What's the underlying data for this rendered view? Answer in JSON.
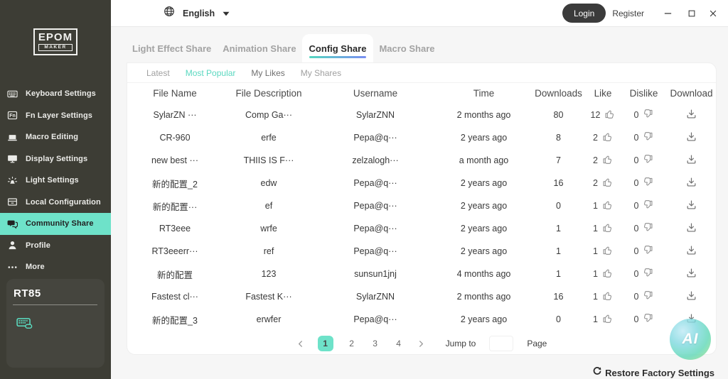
{
  "topbar": {
    "language": "English",
    "language_icon": "globe-icon",
    "login": "Login",
    "register": "Register",
    "window_icons": [
      "minimize-icon",
      "maximize-icon",
      "close-icon"
    ]
  },
  "sidebar": {
    "logo_line1": "EPOM",
    "logo_line2": "MAKER",
    "items": [
      {
        "label": "Keyboard Settings",
        "icon": "keyboard-icon",
        "active": false
      },
      {
        "label": "Fn Layer Settings",
        "icon": "fn-key-icon",
        "active": false
      },
      {
        "label": "Macro Editing",
        "icon": "macro-icon",
        "active": false
      },
      {
        "label": "Display Settings",
        "icon": "display-icon",
        "active": false
      },
      {
        "label": "Light Settings",
        "icon": "light-icon",
        "active": false
      },
      {
        "label": "Local Configuration",
        "icon": "local-config-icon",
        "active": false
      },
      {
        "label": "Community Share",
        "icon": "community-share-icon",
        "active": true
      },
      {
        "label": "Profile",
        "icon": "profile-icon",
        "active": false
      },
      {
        "label": "More",
        "icon": "more-dots-icon",
        "active": false
      }
    ],
    "device": {
      "name": "RT85",
      "icon": "keyboard-device-icon"
    }
  },
  "tabs": [
    {
      "label": "Light Effect Share",
      "active": false
    },
    {
      "label": "Animation Share",
      "active": false
    },
    {
      "label": "Config Share",
      "active": true
    },
    {
      "label": "Macro Share",
      "active": false
    }
  ],
  "subtabs": [
    {
      "label": "Latest",
      "tone": "light"
    },
    {
      "label": "Most Popular",
      "tone": "active"
    },
    {
      "label": "My Likes",
      "tone": "dark"
    },
    {
      "label": "My Shares",
      "tone": "light"
    }
  ],
  "table": {
    "headers": [
      "File Name",
      "File Description",
      "Username",
      "Time",
      "Downloads",
      "Like",
      "Dislike",
      "Download"
    ],
    "like_icon": "thumb-up-icon",
    "dislike_icon": "thumb-down-icon",
    "download_icon": "download-icon",
    "rows": [
      {
        "name": "SylarZN ···",
        "desc": "Comp Ga···",
        "user": "SylarZNN",
        "time": "2 months ago",
        "downloads": "80",
        "likes": "12",
        "dislikes": "0"
      },
      {
        "name": "CR-960",
        "desc": "erfe",
        "user": "Pepa@q···",
        "time": "2 years ago",
        "downloads": "8",
        "likes": "2",
        "dislikes": "0"
      },
      {
        "name": "new best ···",
        "desc": "THIIS IS F···",
        "user": "zelzalogh···",
        "time": "a month ago",
        "downloads": "7",
        "likes": "2",
        "dislikes": "0"
      },
      {
        "name": "新的配置_2",
        "desc": "edw",
        "user": "Pepa@q···",
        "time": "2 years ago",
        "downloads": "16",
        "likes": "2",
        "dislikes": "0"
      },
      {
        "name": "新的配置···",
        "desc": "ef",
        "user": "Pepa@q···",
        "time": "2 years ago",
        "downloads": "0",
        "likes": "1",
        "dislikes": "0"
      },
      {
        "name": "RT3eee",
        "desc": "wrfe",
        "user": "Pepa@q···",
        "time": "2 years ago",
        "downloads": "1",
        "likes": "1",
        "dislikes": "0"
      },
      {
        "name": "RT3eeerr···",
        "desc": "ref",
        "user": "Pepa@q···",
        "time": "2 years ago",
        "downloads": "1",
        "likes": "1",
        "dislikes": "0"
      },
      {
        "name": "新的配置",
        "desc": "123",
        "user": "sunsun1jnj",
        "time": "4 months ago",
        "downloads": "1",
        "likes": "1",
        "dislikes": "0"
      },
      {
        "name": "Fastest cl···",
        "desc": "Fastest K···",
        "user": "SylarZNN",
        "time": "2 months ago",
        "downloads": "16",
        "likes": "1",
        "dislikes": "0"
      },
      {
        "name": "新的配置_3",
        "desc": "erwfer",
        "user": "Pepa@q···",
        "time": "2 years ago",
        "downloads": "0",
        "likes": "1",
        "dislikes": "0"
      }
    ]
  },
  "pagination": {
    "pages": [
      {
        "label": "1",
        "active": true
      },
      {
        "label": "2",
        "active": false
      },
      {
        "label": "3",
        "active": false
      },
      {
        "label": "4",
        "active": false
      }
    ],
    "jump_label": "Jump to",
    "jump_value": "",
    "page_label": "Page"
  },
  "watermark": {
    "text": "AI"
  },
  "footer": {
    "restore_label": "Restore Factory Settings",
    "restore_icon": "refresh-icon"
  },
  "colors": {
    "accent_teal": "#6ee2c9",
    "subtab_active": "#5bd8c0",
    "tab_underline_start": "#55d7c0",
    "tab_underline_end": "#7a8ef2",
    "sidebar_bg": "#3d3d35",
    "login_bg": "#3b3b3b"
  }
}
